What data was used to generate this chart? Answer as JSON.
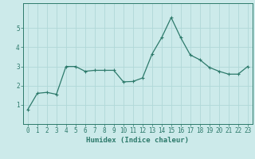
{
  "x": [
    0,
    1,
    2,
    3,
    4,
    5,
    6,
    7,
    8,
    9,
    10,
    11,
    12,
    13,
    14,
    15,
    16,
    17,
    18,
    19,
    20,
    21,
    22,
    23
  ],
  "y": [
    0.75,
    1.6,
    1.65,
    1.55,
    3.0,
    3.0,
    2.75,
    2.8,
    2.8,
    2.8,
    2.2,
    2.22,
    2.4,
    3.65,
    4.5,
    5.55,
    4.5,
    3.6,
    3.35,
    2.95,
    2.75,
    2.6,
    2.6,
    3.0
  ],
  "line_color": "#2d7a6b",
  "marker": "+",
  "marker_size": 3,
  "bg_color": "#cceaea",
  "grid_color": "#b0d8d8",
  "xlabel": "Humidex (Indice chaleur)",
  "xlim": [
    -0.5,
    23.5
  ],
  "ylim": [
    0,
    6.3
  ],
  "yticks": [
    1,
    2,
    3,
    4,
    5
  ],
  "xticks": [
    0,
    1,
    2,
    3,
    4,
    5,
    6,
    7,
    8,
    9,
    10,
    11,
    12,
    13,
    14,
    15,
    16,
    17,
    18,
    19,
    20,
    21,
    22,
    23
  ],
  "tick_color": "#2d7a6b",
  "label_fontsize": 6.5,
  "tick_fontsize": 5.5,
  "linewidth": 0.9,
  "markeredgewidth": 0.8
}
